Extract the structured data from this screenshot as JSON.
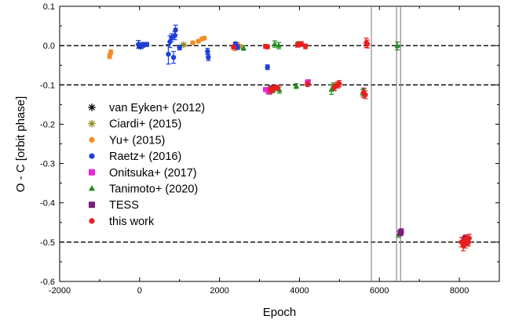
{
  "chart_data": {
    "type": "scatter",
    "title": "",
    "xlabel": "Epoch",
    "ylabel": "O - C  [orbit phase]",
    "xlim": [
      -2000,
      9000
    ],
    "ylim": [
      -0.6,
      0.1
    ],
    "xticks": [
      -2000,
      0,
      2000,
      4000,
      6000,
      8000
    ],
    "yticks": [
      0.1,
      0.0,
      -0.1,
      -0.2,
      -0.3,
      -0.4,
      -0.5,
      -0.6
    ],
    "xtick_labels": [
      "-2000",
      "0",
      "2000",
      "4000",
      "6000",
      "8000"
    ],
    "ytick_labels": [
      "0.1",
      "0.0",
      "-0.1",
      "-0.2",
      "-0.3",
      "-0.4",
      "-0.5",
      "-0.6"
    ],
    "grid": false,
    "legend_position": "left",
    "hlines": [
      0.0,
      -0.1,
      -0.5
    ],
    "vlines": [
      5800,
      6430,
      6530
    ],
    "series": [
      {
        "name": "van Eyken+ (2012)",
        "marker": "asterisk",
        "color": "#000000",
        "x": [
          0,
          20
        ],
        "y": [
          0.001,
          -0.002
        ],
        "err": [
          0.004,
          0.004
        ]
      },
      {
        "name": "Ciardi+ (2015)",
        "marker": "asterisk",
        "color": "#8a8a1e",
        "x": [
          1100,
          2400
        ],
        "y": [
          0.002,
          0.003
        ],
        "err": [
          0.003,
          0.004
        ]
      },
      {
        "name": "Yu+ (2015)",
        "marker": "circle",
        "color": "#f28c28",
        "x": [
          -750,
          -720,
          1330,
          1470,
          1560,
          1620,
          2380,
          2450,
          2500,
          3270
        ],
        "y": [
          -0.027,
          -0.017,
          0.007,
          0.011,
          0.017,
          0.019,
          -0.005,
          0.003,
          -0.002,
          -0.118
        ],
        "err": [
          0.006,
          0.006,
          0.004,
          0.004,
          0.004,
          0.004,
          0.008,
          0.005,
          0.005,
          0.006
        ]
      },
      {
        "name": "Raetz+ (2016)",
        "marker": "circle",
        "color": "#1f3fd6",
        "x": [
          -30,
          50,
          90,
          180,
          720,
          760,
          800,
          850,
          880,
          900,
          1000,
          1700,
          1720,
          2400,
          2450,
          3200,
          3250,
          3280
        ],
        "y": [
          0.003,
          -0.001,
          0.002,
          0.003,
          -0.022,
          0.01,
          0.02,
          -0.03,
          0.025,
          0.04,
          -0.005,
          -0.015,
          -0.03,
          0.003,
          -0.004,
          -0.055,
          -0.115,
          -0.11
        ],
        "err": [
          0.01,
          0.006,
          0.006,
          0.005,
          0.025,
          0.015,
          0.01,
          0.015,
          0.01,
          0.012,
          0.006,
          0.008,
          0.008,
          0.006,
          0.006,
          0.006,
          0.008,
          0.008
        ]
      },
      {
        "name": "Onitsuka+ (2017)",
        "marker": "square",
        "color": "#e628d9",
        "x": [
          3150,
          3220,
          4200,
          4220
        ],
        "y": [
          -0.112,
          -0.118,
          -0.094,
          -0.092
        ],
        "err": [
          0.004,
          0.004,
          0.004,
          0.004
        ]
      },
      {
        "name": "Tanimoto+ (2020)",
        "marker": "triangle",
        "color": "#1e8c1e",
        "x": [
          2600,
          3320,
          3380,
          3480,
          3500,
          3920,
          3980,
          4800,
          4850,
          5580,
          5620,
          6450,
          6480
        ],
        "y": [
          -0.006,
          -0.112,
          0.004,
          0.0,
          -0.113,
          -0.103,
          0.004,
          -0.112,
          -0.105,
          -0.12,
          -0.118,
          -0.001,
          -0.48
        ],
        "err": [
          0.006,
          0.008,
          0.008,
          0.008,
          0.008,
          0.006,
          0.006,
          0.012,
          0.01,
          0.008,
          0.008,
          0.01,
          0.008
        ]
      },
      {
        "name": "TESS",
        "marker": "square",
        "color": "#7d1a7d",
        "x": [
          6520,
          6550,
          8130,
          8150
        ],
        "y": [
          -0.476,
          -0.474,
          -0.493,
          -0.49
        ],
        "err": [
          0.008,
          0.008,
          0.008,
          0.008
        ]
      },
      {
        "name": "this work",
        "marker": "circle",
        "color": "#e81f1f",
        "x": [
          2350,
          3150,
          3200,
          3270,
          3350,
          3380,
          3450,
          3950,
          4050,
          4150,
          4200,
          4880,
          4950,
          5000,
          5600,
          5650,
          5670,
          5700,
          8050,
          8100,
          8120,
          8150,
          8170,
          8200,
          8230,
          8250
        ],
        "y": [
          -0.004,
          -0.002,
          -0.003,
          -0.112,
          -0.11,
          -0.108,
          -0.107,
          0.002,
          0.004,
          -0.002,
          -0.098,
          -0.106,
          -0.1,
          -0.097,
          -0.12,
          -0.125,
          0.007,
          0.004,
          -0.5,
          -0.51,
          -0.498,
          -0.505,
          -0.492,
          -0.497,
          -0.5,
          -0.49
        ],
        "err": [
          0.005,
          0.005,
          0.005,
          0.008,
          0.008,
          0.006,
          0.006,
          0.006,
          0.006,
          0.006,
          0.006,
          0.008,
          0.008,
          0.008,
          0.012,
          0.01,
          0.012,
          0.01,
          0.012,
          0.012,
          0.01,
          0.01,
          0.01,
          0.01,
          0.01,
          0.01
        ]
      }
    ]
  }
}
